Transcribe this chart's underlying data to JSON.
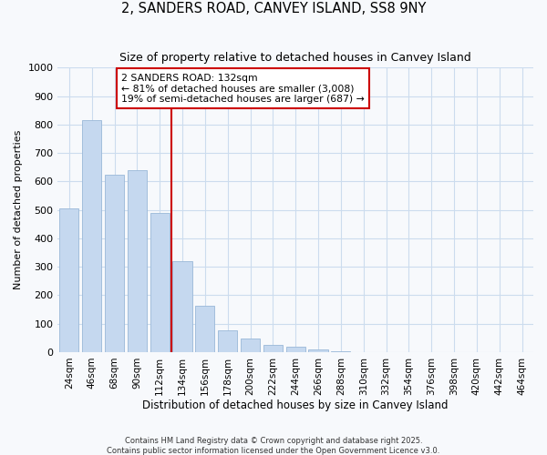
{
  "title": "2, SANDERS ROAD, CANVEY ISLAND, SS8 9NY",
  "subtitle": "Size of property relative to detached houses in Canvey Island",
  "xlabel": "Distribution of detached houses by size in Canvey Island",
  "ylabel": "Number of detached properties",
  "categories": [
    "24sqm",
    "46sqm",
    "68sqm",
    "90sqm",
    "112sqm",
    "134sqm",
    "156sqm",
    "178sqm",
    "200sqm",
    "222sqm",
    "244sqm",
    "266sqm",
    "288sqm",
    "310sqm",
    "332sqm",
    "354sqm",
    "376sqm",
    "398sqm",
    "420sqm",
    "442sqm",
    "464sqm"
  ],
  "values": [
    505,
    815,
    625,
    640,
    490,
    320,
    163,
    78,
    47,
    25,
    18,
    10,
    2,
    1,
    0,
    0,
    0,
    0,
    0,
    0,
    0
  ],
  "bar_color": "#c5d8ef",
  "bar_edge_color": "#9ab8d8",
  "red_line_x": 4.5,
  "red_line_color": "#cc0000",
  "ylim": [
    0,
    1000
  ],
  "yticks": [
    0,
    100,
    200,
    300,
    400,
    500,
    600,
    700,
    800,
    900,
    1000
  ],
  "annotation_title": "2 SANDERS ROAD: 132sqm",
  "annotation_line1": "← 81% of detached houses are smaller (3,008)",
  "annotation_line2": "19% of semi-detached houses are larger (687) →",
  "annotation_box_color": "#ffffff",
  "annotation_box_edge": "#cc0000",
  "footer1": "Contains HM Land Registry data © Crown copyright and database right 2025.",
  "footer2": "Contains public sector information licensed under the Open Government Licence v3.0.",
  "background_color": "#f7f9fc",
  "grid_color": "#ccdcee"
}
